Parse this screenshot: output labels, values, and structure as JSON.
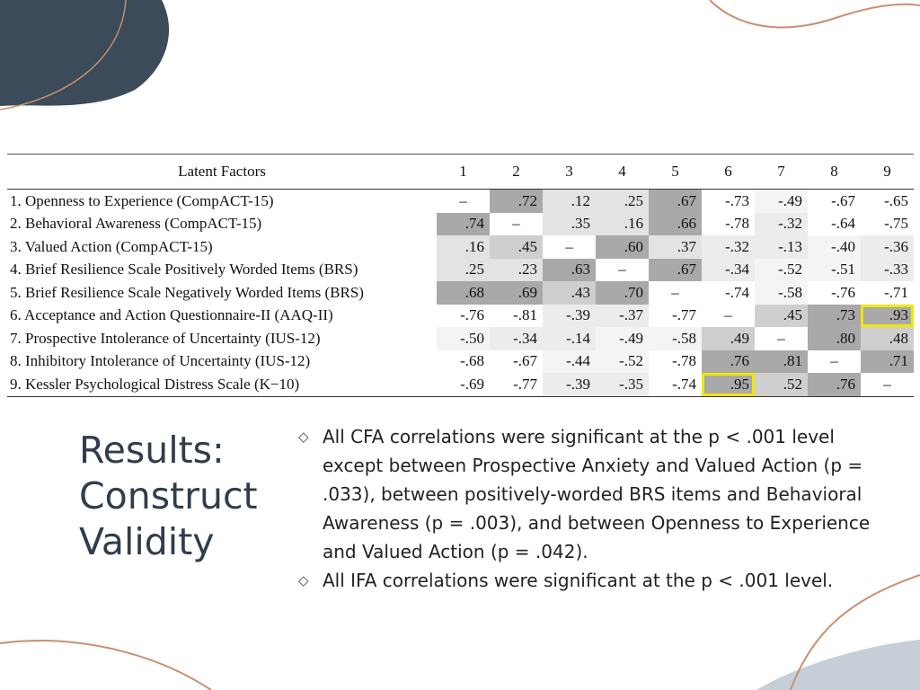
{
  "table": {
    "header": {
      "label": "Latent Factors",
      "cols": [
        "1",
        "2",
        "3",
        "4",
        "5",
        "6",
        "7",
        "8",
        "9"
      ]
    },
    "rows": [
      {
        "label": "1. Openness to Experience (CompACT-15)",
        "cells": [
          "–",
          ".72",
          ".12",
          ".25",
          ".67",
          "-.73",
          "-.49",
          "-.67",
          "-.65"
        ]
      },
      {
        "label": "2. Behavioral Awareness (CompACT-15)",
        "cells": [
          ".74",
          "–",
          ".35",
          ".16",
          ".66",
          "-.78",
          "-.32",
          "-.64",
          "-.75"
        ]
      },
      {
        "label": "3. Valued Action (CompACT-15)",
        "cells": [
          ".16",
          ".45",
          "–",
          ".60",
          ".37",
          "-.32",
          "-.13",
          "-.40",
          "-.36"
        ]
      },
      {
        "label": "4. Brief Resilience Scale Positively Worded Items (BRS)",
        "cells": [
          ".25",
          ".23",
          ".63",
          "–",
          ".67",
          "-.34",
          "-.52",
          "-.51",
          "-.33"
        ]
      },
      {
        "label": "5. Brief Resilience Scale Negatively Worded Items (BRS)",
        "cells": [
          ".68",
          ".69",
          ".43",
          ".70",
          "–",
          "-.74",
          "-.58",
          "-.76",
          "-.71"
        ]
      },
      {
        "label": "6. Acceptance and Action Questionnaire-II (AAQ-II)",
        "cells": [
          "-.76",
          "-.81",
          "-.39",
          "-.37",
          "-.77",
          "–",
          ".45",
          ".73",
          ".93"
        ]
      },
      {
        "label": "7. Prospective Intolerance of Uncertainty (IUS-12)",
        "cells": [
          "-.50",
          "-.34",
          "-.14",
          "-.49",
          "-.58",
          ".49",
          "–",
          ".80",
          ".48"
        ]
      },
      {
        "label": "8. Inhibitory Intolerance of Uncertainty (IUS-12)",
        "cells": [
          "-.68",
          "-.67",
          "-.44",
          "-.52",
          "-.78",
          ".76",
          ".81",
          "–",
          ".71"
        ]
      },
      {
        "label": "9. Kessler Psychological Distress Scale (K−10)",
        "cells": [
          "-.69",
          "-.77",
          "-.39",
          "-.35",
          "-.74",
          ".95",
          ".52",
          ".76",
          "–"
        ]
      }
    ],
    "highlighted_cells": [
      {
        "row": 6,
        "col": 9
      },
      {
        "row": 9,
        "col": 6
      }
    ],
    "highlight_color": "#f0e800"
  },
  "title": {
    "lines": [
      "Results:",
      "Construct",
      "Validity"
    ]
  },
  "bullets": {
    "marker": "◇",
    "items": [
      "All CFA correlations were significant at the p < .001 level except between Prospective Anxiety and Valued Action (p = .033), between positively-worded BRS items and Behavioral Awareness (p = .003), and between Openness to Experience and Valued Action (p = .042).",
      "All IFA correlations were significant at the p < .001 level."
    ]
  },
  "colors": {
    "title": "#2f3d4c",
    "corner_blob": "#3b4b5a",
    "accent_line": "#c99070",
    "corner_blob_light": "#c6ced8"
  }
}
